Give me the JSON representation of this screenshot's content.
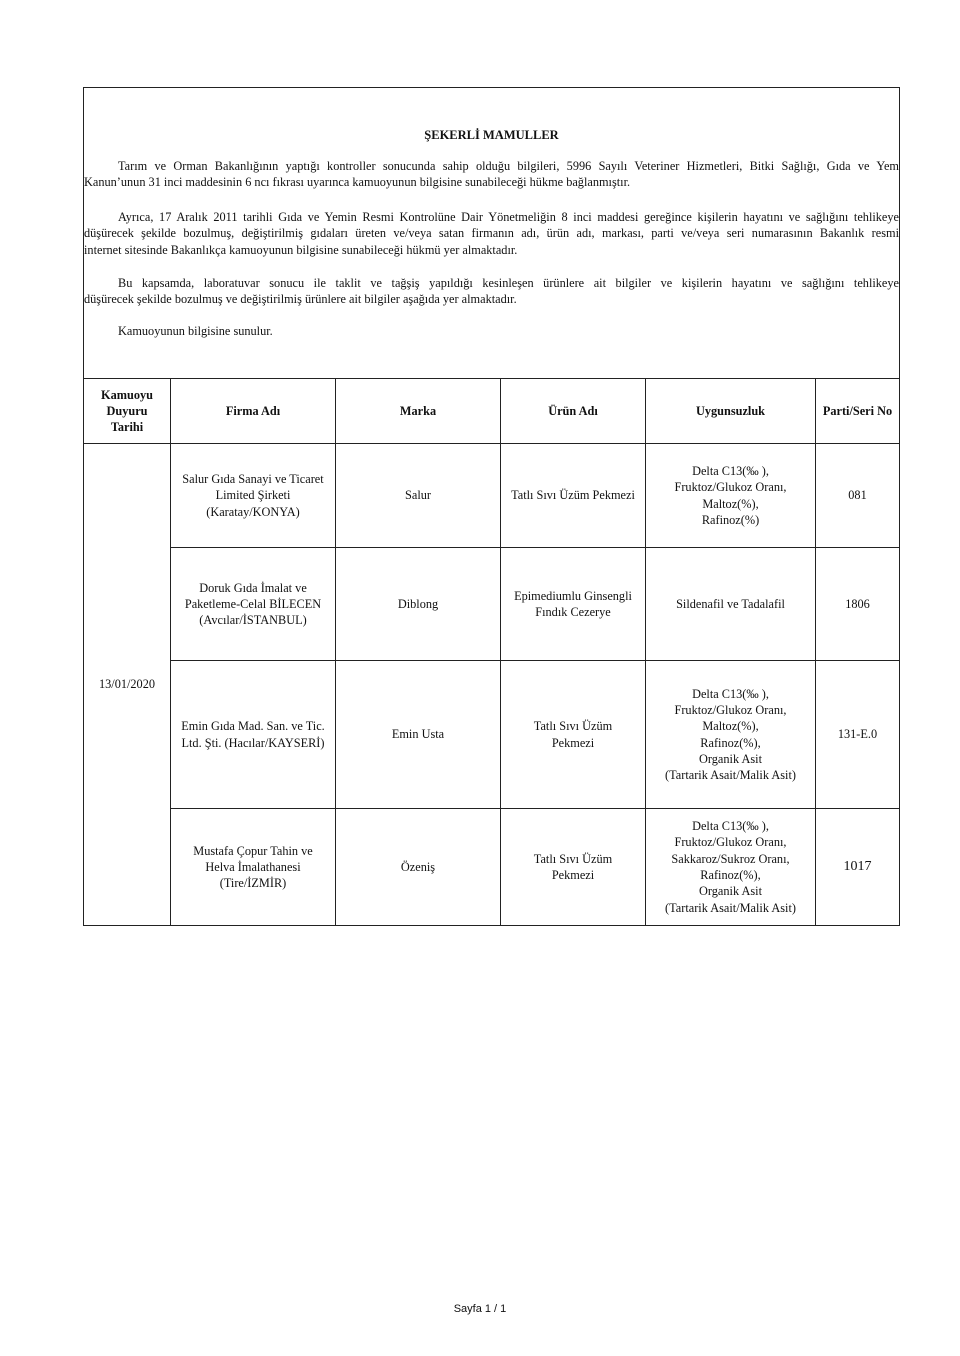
{
  "title": "ŞEKERLİ MAMULLER",
  "paragraphs": [
    [
      "Tarım ve Orman Bakanlığının yaptığı kontroller sonucunda sahip olduğu bilgileri, 5996 Sayılı Veteriner Hizmetleri, Bitki Sağlığı, Gıda ve Yem",
      "Kanun’unun 31 inci maddesinin 6 ncı fıkrası uyarınca kamuoyunun bilgisine sunabileceği hükme bağlanmıştır."
    ],
    [
      "Ayrıca, 17 Aralık 2011 tarihli Gıda ve Yemin Resmi Kontrolüne Dair Yönetmeliğin 8 inci maddesi gereğince kişilerin hayatını ve sağlığını tehlikeye",
      "düşürecek şekilde bozulmuş, değiştirilmiş gıdaları üreten ve/veya satan firmanın adı, ürün adı, markası, parti ve/veya seri numarasının Bakanlık resmi",
      "internet sitesinde Bakanlıkça kamuoyunun bilgisine sunabileceği hükmü yer almaktadır."
    ],
    [
      "Bu kapsamda, laboratuvar sonucu ile taklit ve tağşiş yapıldığı kesinleşen ürünlere ait bilgiler ve kişilerin hayatını ve sağlığını tehlikeye",
      "düşürecek şekilde bozulmuş ve değiştirilmiş ürünlere ait bilgiler aşağıda yer almaktadır."
    ],
    [
      "Kamuoyunun bilgisine sunulur."
    ]
  ],
  "table": {
    "headers": [
      [
        "Kamuoyu",
        "Duyuru",
        "Tarihi"
      ],
      [
        "Firma Adı"
      ],
      [
        "Marka"
      ],
      [
        "Ürün Adı"
      ],
      [
        "Uygunsuzluk"
      ],
      [
        "Parti/Seri No"
      ]
    ],
    "date": "13/01/2020",
    "rows": [
      {
        "firma": [
          "Salur Gıda Sanayi ve Ticaret",
          "Limited Şirketi",
          "(Karatay/KONYA)"
        ],
        "marka": "Salur",
        "urun": [
          "Tatlı Sıvı Üzüm Pekmezi"
        ],
        "uygunsuzluk": [
          "Delta C13(‰ ),",
          "Fruktoz/Glukoz Oranı,",
          "Maltoz(%),",
          "Rafinoz(%)"
        ],
        "parti": "081"
      },
      {
        "firma": [
          "Doruk Gıda İmalat ve",
          "Paketleme-Celal BİLECEN",
          "(Avcılar/İSTANBUL)"
        ],
        "marka": "Diblong",
        "urun": [
          "Epimediumlu Ginsengli",
          "Fındık Cezerye"
        ],
        "uygunsuzluk": [
          "Sildenafil ve Tadalafil"
        ],
        "parti": "1806"
      },
      {
        "firma": [
          "Emin Gıda Mad. San. ve Tic.",
          "Ltd. Şti.  (Hacılar/KAYSERİ)"
        ],
        "marka": "Emin Usta",
        "urun": [
          "Tatlı Sıvı Üzüm",
          "Pekmezi"
        ],
        "uygunsuzluk": [
          "Delta C13(‰ ),",
          "Fruktoz/Glukoz Oranı,",
          "Maltoz(%),",
          "Rafinoz(%),",
          "Organik Asit",
          "(Tartarik Asait/Malik Asit)"
        ],
        "parti": "131-E.0"
      },
      {
        "firma": [
          "Mustafa Çopur Tahin ve",
          "Helva İmalathanesi",
          "(Tire/İZMİR)"
        ],
        "marka": "Özeniş",
        "urun": [
          "Tatlı Sıvı Üzüm",
          "Pekmezi"
        ],
        "uygunsuzluk": [
          "Delta C13(‰ ),",
          "Fruktoz/Glukoz Oranı,",
          "Sakkaroz/Sukroz Oranı,",
          "Rafinoz(%),",
          "Organik Asit",
          "(Tartarik Asait/Malik Asit)"
        ],
        "parti": "1017"
      }
    ]
  },
  "footer": "Sayfa 1 / 1"
}
